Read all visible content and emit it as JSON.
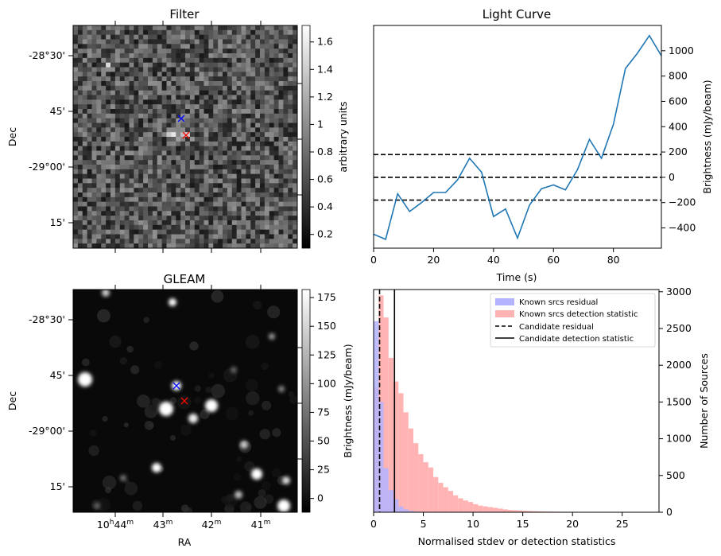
{
  "panels": {
    "filter": {
      "title": "Filter",
      "ylabel": "Dec",
      "ytick_labels": [
        "-28°30'",
        "45'",
        "-29°00'",
        "15'"
      ],
      "colorbar": {
        "label": "arbitrary units",
        "ticks": [
          0.2,
          0.4,
          0.6,
          0.8,
          1.0,
          1.2,
          1.4,
          1.6
        ],
        "range": [
          0.1,
          1.72
        ]
      }
    },
    "gleam": {
      "title": "GLEAM",
      "xlabel": "RA",
      "ylabel": "Dec",
      "ytick_labels": [
        "-28°30'",
        "45'",
        "-29°00'",
        "15'"
      ],
      "xtick_labels": [
        {
          "main": "10",
          "sup1": "h",
          "mid": "44",
          "sup2": "m"
        },
        {
          "main": "43",
          "sup1": "m",
          "mid": "",
          "sup2": ""
        },
        {
          "main": "42",
          "sup1": "m",
          "mid": "",
          "sup2": ""
        },
        {
          "main": "41",
          "sup1": "m",
          "mid": "",
          "sup2": ""
        }
      ],
      "colorbar": {
        "label": "Brightness (mJy/beam)",
        "ticks": [
          0,
          25,
          50,
          75,
          100,
          125,
          150,
          175
        ],
        "range": [
          -12,
          182
        ]
      }
    }
  },
  "colors": {
    "line": "#1f77b4",
    "hist_blue": "#b3b3ff",
    "hist_red": "#ffb3b3",
    "marker_known": "#0000ff",
    "marker_candidate": "#ff0000"
  },
  "chart_data": [
    {
      "type": "line",
      "title": "Light Curve",
      "xlabel": "Time (s)",
      "ylabel": "Brightness (mJy/beam)",
      "xlim": [
        0,
        96
      ],
      "ylim": [
        -560,
        1200
      ],
      "xticks": [
        0,
        20,
        40,
        60,
        80
      ],
      "yticks": [
        -400,
        -200,
        0,
        200,
        400,
        600,
        800,
        1000
      ],
      "grid": false,
      "x": [
        0,
        4,
        8,
        12,
        16,
        20,
        24,
        28,
        32,
        36,
        40,
        44,
        48,
        52,
        56,
        60,
        64,
        68,
        72,
        76,
        80,
        84,
        88,
        92,
        96
      ],
      "series": [
        {
          "values": [
            -450,
            -490,
            -130,
            -270,
            -200,
            -120,
            -120,
            -20,
            150,
            40,
            -310,
            -250,
            -480,
            -220,
            -90,
            -60,
            -100,
            60,
            300,
            150,
            420,
            860,
            980,
            1120,
            960
          ]
        }
      ],
      "hlines": [
        {
          "y": 180,
          "style": "dashed"
        },
        {
          "y": 0,
          "style": "dashed"
        },
        {
          "y": -180,
          "style": "dashed"
        }
      ]
    },
    {
      "type": "bar",
      "xlabel": "Normalised stdev or detection statistics",
      "ylabel": "Number of Sources",
      "xlim": [
        0,
        28.7
      ],
      "ylim": [
        0,
        3030
      ],
      "xticks": [
        0,
        5,
        10,
        15,
        20,
        25
      ],
      "yticks": [
        0,
        500,
        1000,
        1500,
        2000,
        2500,
        3000
      ],
      "legend": "top-right",
      "bin_width": 0.5,
      "series": [
        {
          "name": "Known srcs residual",
          "bin_start": 0,
          "values": [
            2600,
            1500,
            600,
            300,
            180,
            80,
            40,
            20,
            10,
            5
          ]
        },
        {
          "name": "Known srcs detection statistic",
          "bin_start": 0,
          "values": [
            1700,
            2950,
            2650,
            2100,
            1780,
            1620,
            1360,
            1140,
            940,
            790,
            680,
            610,
            480,
            400,
            340,
            290,
            230,
            190,
            160,
            140,
            110,
            90,
            80,
            70,
            60,
            50,
            40,
            32,
            28,
            24,
            20,
            17,
            14,
            12,
            10,
            9,
            8,
            7,
            6,
            5,
            4,
            3,
            3,
            2,
            2,
            2,
            1,
            1,
            1,
            1
          ]
        }
      ],
      "vlines": [
        {
          "name": "Candidate residual",
          "x": 0.6,
          "style": "dashed"
        },
        {
          "name": "Candidate detection statistic",
          "x": 2.1,
          "style": "solid"
        }
      ]
    }
  ]
}
